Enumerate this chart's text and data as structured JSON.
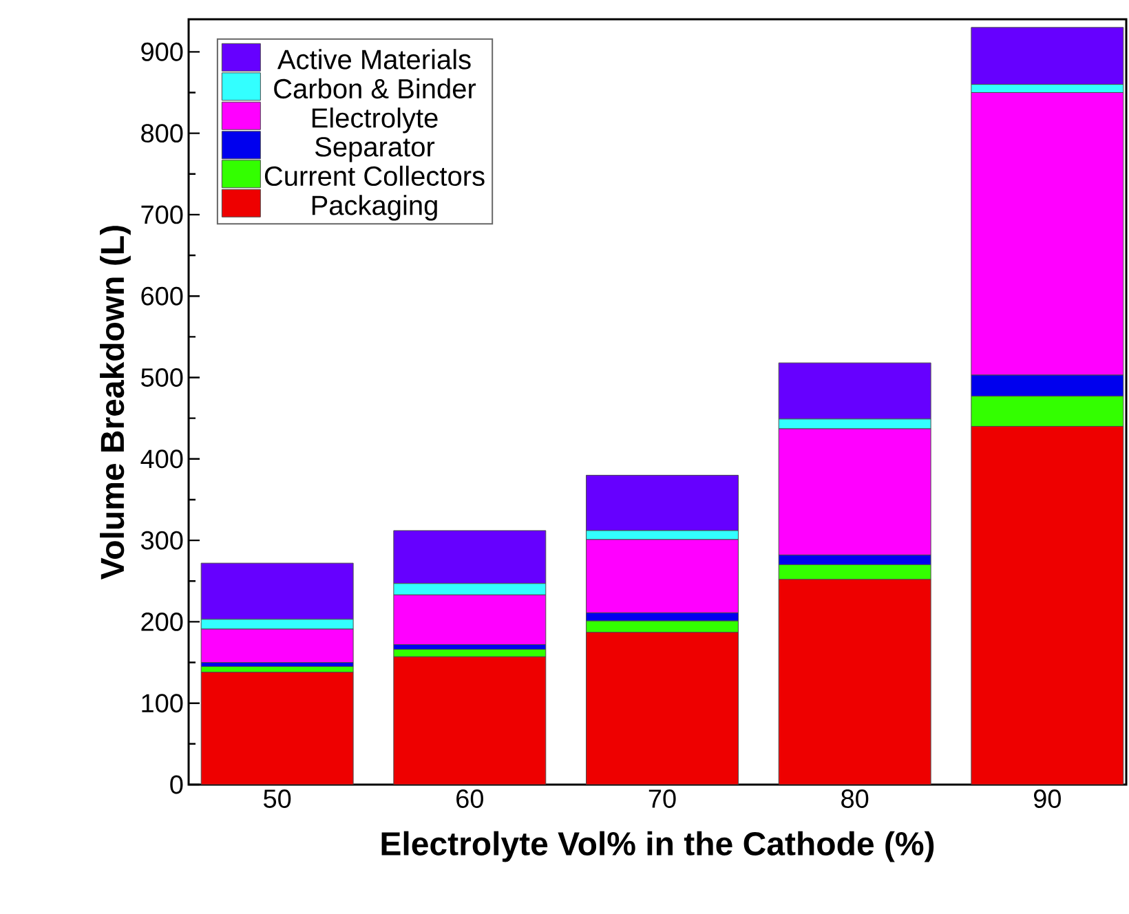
{
  "chart_data": {
    "type": "bar",
    "stacked": true,
    "xlabel": "Electrolyte Vol% in the Cathode (%)",
    "ylabel": "Volume Breakdown (L)",
    "categories": [
      "50",
      "60",
      "70",
      "80",
      "90"
    ],
    "series": [
      {
        "name": "Packaging",
        "color": "#ee0000",
        "values": [
          138,
          157,
          187,
          252,
          440
        ]
      },
      {
        "name": "Current Collectors",
        "color": "#33ff00",
        "values": [
          7,
          9,
          14,
          18,
          37
        ]
      },
      {
        "name": "Separator",
        "color": "#0000ee",
        "values": [
          5,
          6,
          10,
          12,
          26
        ]
      },
      {
        "name": "Electrolyte",
        "color": "#ff00ff",
        "values": [
          41,
          61,
          90,
          155,
          347
        ]
      },
      {
        "name": "Carbon & Binder",
        "color": "#33ffff",
        "values": [
          12,
          14,
          11,
          12,
          10
        ]
      },
      {
        "name": "Active Materials",
        "color": "#6600ff",
        "values": [
          69,
          65,
          68,
          69,
          70
        ]
      }
    ],
    "ylim": [
      0,
      940
    ],
    "yticks": [
      0,
      100,
      200,
      300,
      400,
      500,
      600,
      700,
      800,
      900
    ],
    "legend": "top left"
  }
}
